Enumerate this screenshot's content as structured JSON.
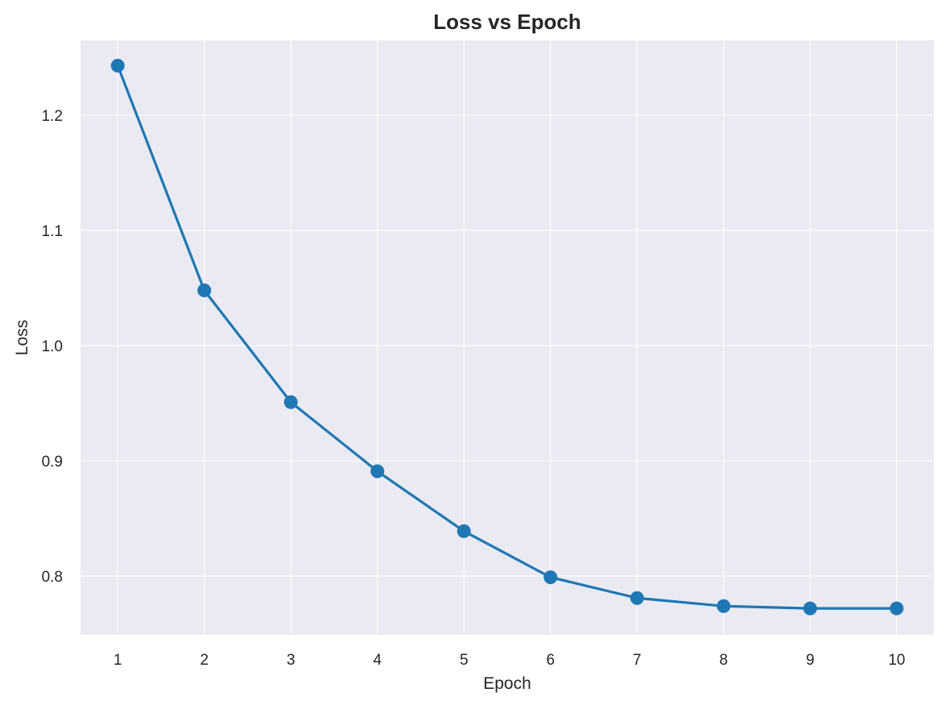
{
  "chart_data": {
    "type": "line",
    "title": "Loss vs Epoch",
    "xlabel": "Epoch",
    "ylabel": "Loss",
    "x": [
      1,
      2,
      3,
      4,
      5,
      6,
      7,
      8,
      9,
      10
    ],
    "series": [
      {
        "values": [
          1.243,
          1.048,
          0.951,
          0.891,
          0.839,
          0.799,
          0.781,
          0.774,
          0.772,
          0.772
        ]
      }
    ],
    "xticks": [
      "1",
      "2",
      "3",
      "4",
      "5",
      "6",
      "7",
      "8",
      "9",
      "10"
    ],
    "yticks": [
      "0.8",
      "0.9",
      "1.0",
      "1.1",
      "1.2"
    ],
    "xlim": [
      0.57,
      10.43
    ],
    "ylim": [
      0.749,
      1.265
    ],
    "grid": true,
    "legend": "none",
    "colors": {
      "line": "#1f77b4",
      "plot_background": "#eaeaf2",
      "grid": "#ffffff",
      "text": "#262626"
    }
  }
}
